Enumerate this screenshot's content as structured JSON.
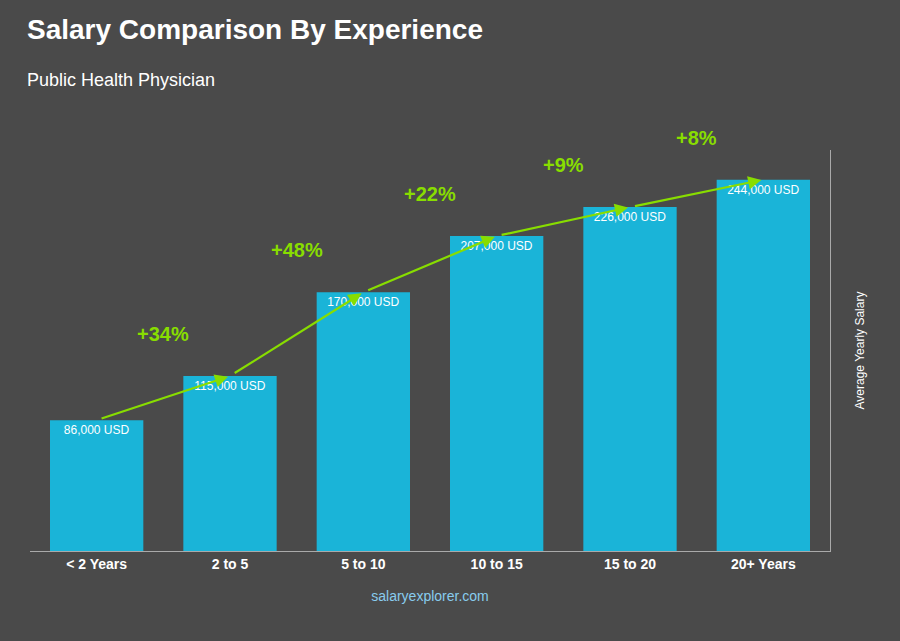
{
  "chart_data": {
    "type": "bar",
    "title": "Salary Comparison By Experience",
    "subtitle": "Public Health Physician",
    "xlabel": "salaryexplorer.com",
    "ylabel": "Average Yearly Salary",
    "categories": [
      "< 2 Years",
      "2 to 5",
      "5 to 10",
      "10 to 15",
      "15 to 20",
      "20+ Years"
    ],
    "values": [
      86000,
      115000,
      170000,
      207000,
      226000,
      244000
    ],
    "value_labels": [
      "86,000 USD",
      "115,000 USD",
      "170,000 USD",
      "207,000 USD",
      "226,000 USD",
      "244,000 USD"
    ],
    "data_labels": true,
    "annotations": [
      "+34%",
      "+48%",
      "+22%",
      "+9%",
      "+8%"
    ],
    "color": "#1ab4d8",
    "ylim": [
      0,
      263520
    ],
    "grid": false,
    "tick_labels": "x"
  }
}
